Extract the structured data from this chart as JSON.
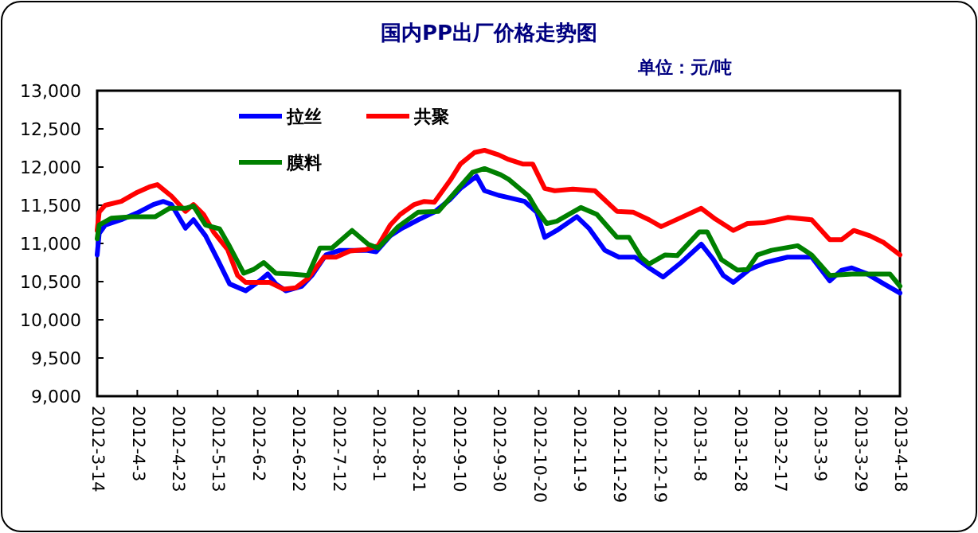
{
  "chart_data": {
    "type": "line",
    "title": "国内PP出厂价格走势图",
    "subtitle": "单位：元/吨",
    "legend": "top left",
    "grid": false,
    "xlim": [
      "2012-03-14",
      "2013-04-18"
    ],
    "xticks": [
      {
        "value": "2012-03-14",
        "label": "2012-3-14"
      },
      {
        "value": "2012-04-03",
        "label": "2012-4-3"
      },
      {
        "value": "2012-04-23",
        "label": "2012-4-23"
      },
      {
        "value": "2012-05-13",
        "label": "2012-5-13"
      },
      {
        "value": "2012-06-02",
        "label": "2012-6-2"
      },
      {
        "value": "2012-06-22",
        "label": "2012-6-22"
      },
      {
        "value": "2012-07-12",
        "label": "2012-7-12"
      },
      {
        "value": "2012-08-01",
        "label": "2012-8-1"
      },
      {
        "value": "2012-08-21",
        "label": "2012-8-21"
      },
      {
        "value": "2012-09-10",
        "label": "2012-9-10"
      },
      {
        "value": "2012-09-30",
        "label": "2012-9-30"
      },
      {
        "value": "2012-10-20",
        "label": "2012-10-20"
      },
      {
        "value": "2012-11-09",
        "label": "2012-11-9"
      },
      {
        "value": "2012-11-29",
        "label": "2012-11-29"
      },
      {
        "value": "2012-12-19",
        "label": "2012-12-19"
      },
      {
        "value": "2013-01-08",
        "label": "2013-1-8"
      },
      {
        "value": "2013-01-28",
        "label": "2013-1-28"
      },
      {
        "value": "2013-02-17",
        "label": "2013-2-17"
      },
      {
        "value": "2013-03-09",
        "label": "2013-3-9"
      },
      {
        "value": "2013-03-29",
        "label": "2013-3-29"
      },
      {
        "value": "2013-04-18",
        "label": "2013-4-18"
      }
    ],
    "ylim": [
      9000,
      13000
    ],
    "yticks": [
      {
        "value": 9000,
        "label": "9,000"
      },
      {
        "value": 9500,
        "label": "9,500"
      },
      {
        "value": 10000,
        "label": "10,000"
      },
      {
        "value": 10500,
        "label": "10,500"
      },
      {
        "value": 11000,
        "label": "11,000"
      },
      {
        "value": 11500,
        "label": "11,500"
      },
      {
        "value": 12000,
        "label": "12,000"
      },
      {
        "value": 12500,
        "label": "12,500"
      },
      {
        "value": 13000,
        "label": "13,000"
      }
    ],
    "series": [
      {
        "name": "拉丝",
        "color": "#0000ff",
        "x": [
          "2012-03-14",
          "2012-03-15",
          "2012-03-18",
          "2012-03-26",
          "2012-04-03",
          "2012-04-11",
          "2012-04-16",
          "2012-04-20",
          "2012-04-27",
          "2012-05-01",
          "2012-05-07",
          "2012-05-13",
          "2012-05-19",
          "2012-05-27",
          "2012-06-03",
          "2012-06-07",
          "2012-06-11",
          "2012-06-16",
          "2012-06-24",
          "2012-06-29",
          "2012-07-06",
          "2012-07-13",
          "2012-07-20",
          "2012-07-26",
          "2012-07-31",
          "2012-08-07",
          "2012-08-13",
          "2012-08-21",
          "2012-08-29",
          "2012-09-06",
          "2012-09-11",
          "2012-09-19",
          "2012-09-23",
          "2012-09-30",
          "2012-10-05",
          "2012-10-13",
          "2012-10-19",
          "2012-10-23",
          "2012-10-29",
          "2012-11-08",
          "2012-11-14",
          "2012-11-22",
          "2012-11-29",
          "2012-12-07",
          "2012-12-14",
          "2012-12-21",
          "2012-12-30",
          "2013-01-09",
          "2013-01-15",
          "2013-01-20",
          "2013-01-25",
          "2013-02-02",
          "2013-02-10",
          "2013-02-21",
          "2013-03-05",
          "2013-03-10",
          "2013-03-14",
          "2013-03-20",
          "2013-03-25",
          "2013-04-01",
          "2013-04-10",
          "2013-04-18"
        ],
        "values": [
          10850,
          11130,
          11240,
          11310,
          11400,
          11510,
          11550,
          11510,
          11200,
          11310,
          11100,
          10790,
          10470,
          10380,
          10510,
          10600,
          10470,
          10380,
          10440,
          10580,
          10850,
          10910,
          10910,
          10910,
          10890,
          11100,
          11200,
          11310,
          11410,
          11580,
          11720,
          11880,
          11690,
          11630,
          11600,
          11550,
          11410,
          11080,
          11170,
          11350,
          11200,
          10910,
          10820,
          10820,
          10680,
          10560,
          10750,
          10990,
          10790,
          10580,
          10490,
          10660,
          10750,
          10820,
          10820,
          10650,
          10510,
          10650,
          10680,
          10610,
          10470,
          10350
        ]
      },
      {
        "name": "共聚",
        "color": "#ff0000",
        "x": [
          "2012-03-14",
          "2012-03-15",
          "2012-03-18",
          "2012-03-26",
          "2012-04-03",
          "2012-04-09",
          "2012-04-13",
          "2012-04-20",
          "2012-04-27",
          "2012-05-01",
          "2012-05-06",
          "2012-05-11",
          "2012-05-18",
          "2012-05-23",
          "2012-05-27",
          "2012-06-03",
          "2012-06-08",
          "2012-06-15",
          "2012-06-21",
          "2012-06-27",
          "2012-07-05",
          "2012-07-11",
          "2012-07-18",
          "2012-07-26",
          "2012-08-01",
          "2012-08-07",
          "2012-08-12",
          "2012-08-19",
          "2012-08-24",
          "2012-08-29",
          "2012-09-06",
          "2012-09-11",
          "2012-09-18",
          "2012-09-23",
          "2012-09-30",
          "2012-10-05",
          "2012-10-12",
          "2012-10-17",
          "2012-10-23",
          "2012-10-28",
          "2012-11-06",
          "2012-11-17",
          "2012-11-28",
          "2012-12-06",
          "2012-12-14",
          "2012-12-20",
          "2012-12-30",
          "2013-01-09",
          "2013-01-16",
          "2013-01-25",
          "2013-02-01",
          "2013-02-09",
          "2013-02-21",
          "2013-03-05",
          "2013-03-14",
          "2013-03-20",
          "2013-03-26",
          "2013-04-03",
          "2013-04-10",
          "2013-04-18"
        ],
        "values": [
          11170,
          11410,
          11500,
          11550,
          11670,
          11740,
          11770,
          11620,
          11420,
          11510,
          11380,
          11150,
          10920,
          10580,
          10490,
          10490,
          10490,
          10400,
          10420,
          10540,
          10820,
          10820,
          10900,
          10920,
          10970,
          11240,
          11380,
          11510,
          11550,
          11540,
          11830,
          12040,
          12190,
          12220,
          12160,
          12100,
          12040,
          12040,
          11720,
          11690,
          11710,
          11690,
          11420,
          11410,
          11310,
          11220,
          11340,
          11460,
          11320,
          11170,
          11260,
          11270,
          11340,
          11310,
          11050,
          11050,
          11170,
          11100,
          11010,
          10850
        ]
      },
      {
        "name": "膜料",
        "color": "#008000",
        "x": [
          "2012-03-14",
          "2012-03-15",
          "2012-03-21",
          "2012-03-31",
          "2012-04-12",
          "2012-04-19",
          "2012-04-27",
          "2012-05-01",
          "2012-05-07",
          "2012-05-14",
          "2012-05-19",
          "2012-05-26",
          "2012-05-31",
          "2012-06-05",
          "2012-06-11",
          "2012-06-19",
          "2012-06-27",
          "2012-07-03",
          "2012-07-09",
          "2012-07-19",
          "2012-07-27",
          "2012-08-01",
          "2012-08-11",
          "2012-08-21",
          "2012-08-31",
          "2012-09-09",
          "2012-09-17",
          "2012-09-23",
          "2012-10-01",
          "2012-10-05",
          "2012-10-15",
          "2012-10-19",
          "2012-10-24",
          "2012-10-29",
          "2012-11-10",
          "2012-11-18",
          "2012-11-28",
          "2012-12-04",
          "2012-12-10",
          "2012-12-14",
          "2012-12-22",
          "2012-12-28",
          "2013-01-08",
          "2013-01-12",
          "2013-01-19",
          "2013-01-27",
          "2013-02-01",
          "2013-02-06",
          "2013-02-13",
          "2013-02-26",
          "2013-03-05",
          "2013-03-14",
          "2013-03-25",
          "2013-04-13",
          "2013-04-18"
        ],
        "values": [
          11060,
          11240,
          11330,
          11350,
          11350,
          11460,
          11460,
          11490,
          11240,
          11190,
          10960,
          10610,
          10660,
          10750,
          10610,
          10600,
          10580,
          10940,
          10940,
          11170,
          10990,
          10940,
          11220,
          11410,
          11420,
          11690,
          11930,
          11980,
          11900,
          11840,
          11620,
          11440,
          11260,
          11290,
          11470,
          11380,
          11080,
          11080,
          10820,
          10730,
          10850,
          10840,
          11150,
          11150,
          10790,
          10650,
          10660,
          10850,
          10910,
          10970,
          10850,
          10580,
          10600,
          10600,
          10440
        ]
      }
    ]
  }
}
